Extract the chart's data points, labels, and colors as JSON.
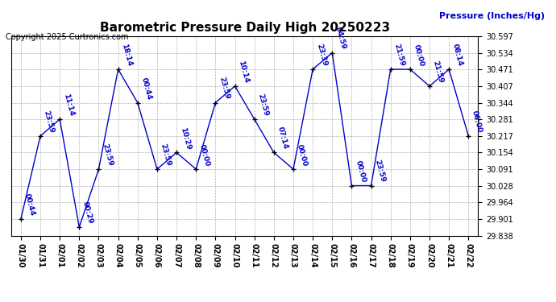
{
  "title": "Barometric Pressure Daily High 20250223",
  "ylabel": "Pressure (Inches/Hg)",
  "copyright": "Copyright 2025 Curtronics.com",
  "line_color": "#0000cc",
  "background_color": "#ffffff",
  "grid_color": "#b0b0b0",
  "ylim": [
    29.838,
    30.597
  ],
  "yticks": [
    29.838,
    29.901,
    29.964,
    30.028,
    30.091,
    30.154,
    30.217,
    30.281,
    30.344,
    30.407,
    30.471,
    30.534,
    30.597
  ],
  "points": [
    {
      "x": 0,
      "date": "01/30",
      "pressure": 29.901,
      "time": "00:44"
    },
    {
      "x": 1,
      "date": "01/31",
      "pressure": 30.217,
      "time": "23:59"
    },
    {
      "x": 2,
      "date": "02/01",
      "pressure": 30.281,
      "time": "11:14"
    },
    {
      "x": 3,
      "date": "02/02",
      "pressure": 29.87,
      "time": "00:29"
    },
    {
      "x": 4,
      "date": "02/03",
      "pressure": 30.091,
      "time": "23:59"
    },
    {
      "x": 5,
      "date": "02/04",
      "pressure": 30.471,
      "time": "18:14"
    },
    {
      "x": 6,
      "date": "02/05",
      "pressure": 30.344,
      "time": "00:44"
    },
    {
      "x": 7,
      "date": "02/06",
      "pressure": 30.091,
      "time": "23:59"
    },
    {
      "x": 8,
      "date": "02/07",
      "pressure": 30.154,
      "time": "10:29"
    },
    {
      "x": 9,
      "date": "02/08",
      "pressure": 30.091,
      "time": "00:00"
    },
    {
      "x": 10,
      "date": "02/09",
      "pressure": 30.344,
      "time": "23:59"
    },
    {
      "x": 11,
      "date": "02/10",
      "pressure": 30.407,
      "time": "10:14"
    },
    {
      "x": 12,
      "date": "02/11",
      "pressure": 30.281,
      "time": "23:59"
    },
    {
      "x": 13,
      "date": "02/12",
      "pressure": 30.154,
      "time": "07:14"
    },
    {
      "x": 14,
      "date": "02/13",
      "pressure": 30.091,
      "time": "00:00"
    },
    {
      "x": 15,
      "date": "02/14",
      "pressure": 30.471,
      "time": "23:39"
    },
    {
      "x": 16,
      "date": "02/15",
      "pressure": 30.534,
      "time": "04:59"
    },
    {
      "x": 17,
      "date": "02/16",
      "pressure": 30.028,
      "time": "00:00"
    },
    {
      "x": 18,
      "date": "02/17",
      "pressure": 30.028,
      "time": "23:59"
    },
    {
      "x": 19,
      "date": "02/18",
      "pressure": 30.471,
      "time": "21:59"
    },
    {
      "x": 20,
      "date": "02/19",
      "pressure": 30.471,
      "time": "00:00"
    },
    {
      "x": 21,
      "date": "02/20",
      "pressure": 30.407,
      "time": "21:59"
    },
    {
      "x": 22,
      "date": "02/21",
      "pressure": 30.471,
      "time": "08:14"
    },
    {
      "x": 23,
      "date": "02/22",
      "pressure": 30.217,
      "time": "06:00"
    }
  ],
  "figwidth": 6.9,
  "figheight": 3.75,
  "dpi": 100
}
